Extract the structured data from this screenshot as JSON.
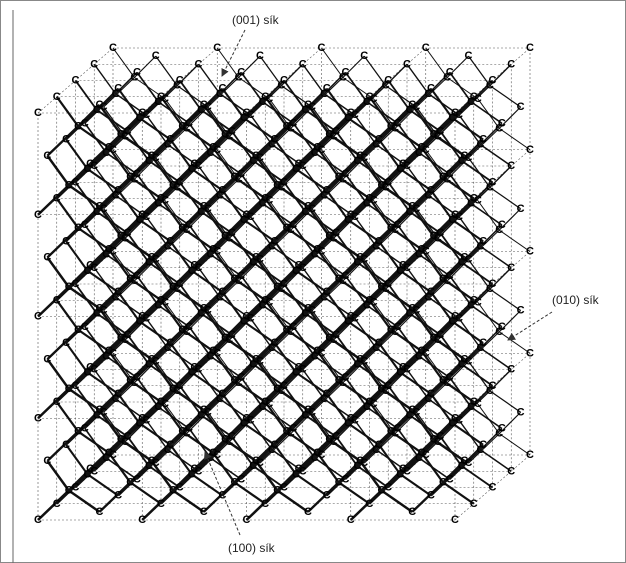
{
  "labels": {
    "plane_001": "(001) sík",
    "plane_010": "(010) sík",
    "plane_100": "(100) sík"
  },
  "atom_label": "C"
}
